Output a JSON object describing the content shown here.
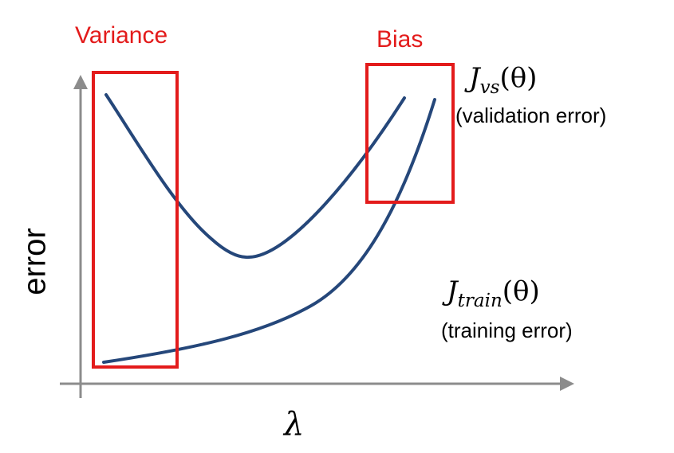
{
  "colors": {
    "curve": "#25477a",
    "box": "#e31b1b",
    "axis": "#8c8c8c",
    "text": "#000000",
    "label_red": "#e31b1b"
  },
  "labels": {
    "variance": "Variance",
    "bias": "Bias",
    "y_axis": "error",
    "x_axis": "λ",
    "validation_J": "J",
    "validation_sub": "vs",
    "validation_arg": "(θ)",
    "validation_desc": "(validation error)",
    "training_J": "J",
    "training_sub": "train",
    "training_arg": "(θ)",
    "training_desc": "(training error)"
  }
}
